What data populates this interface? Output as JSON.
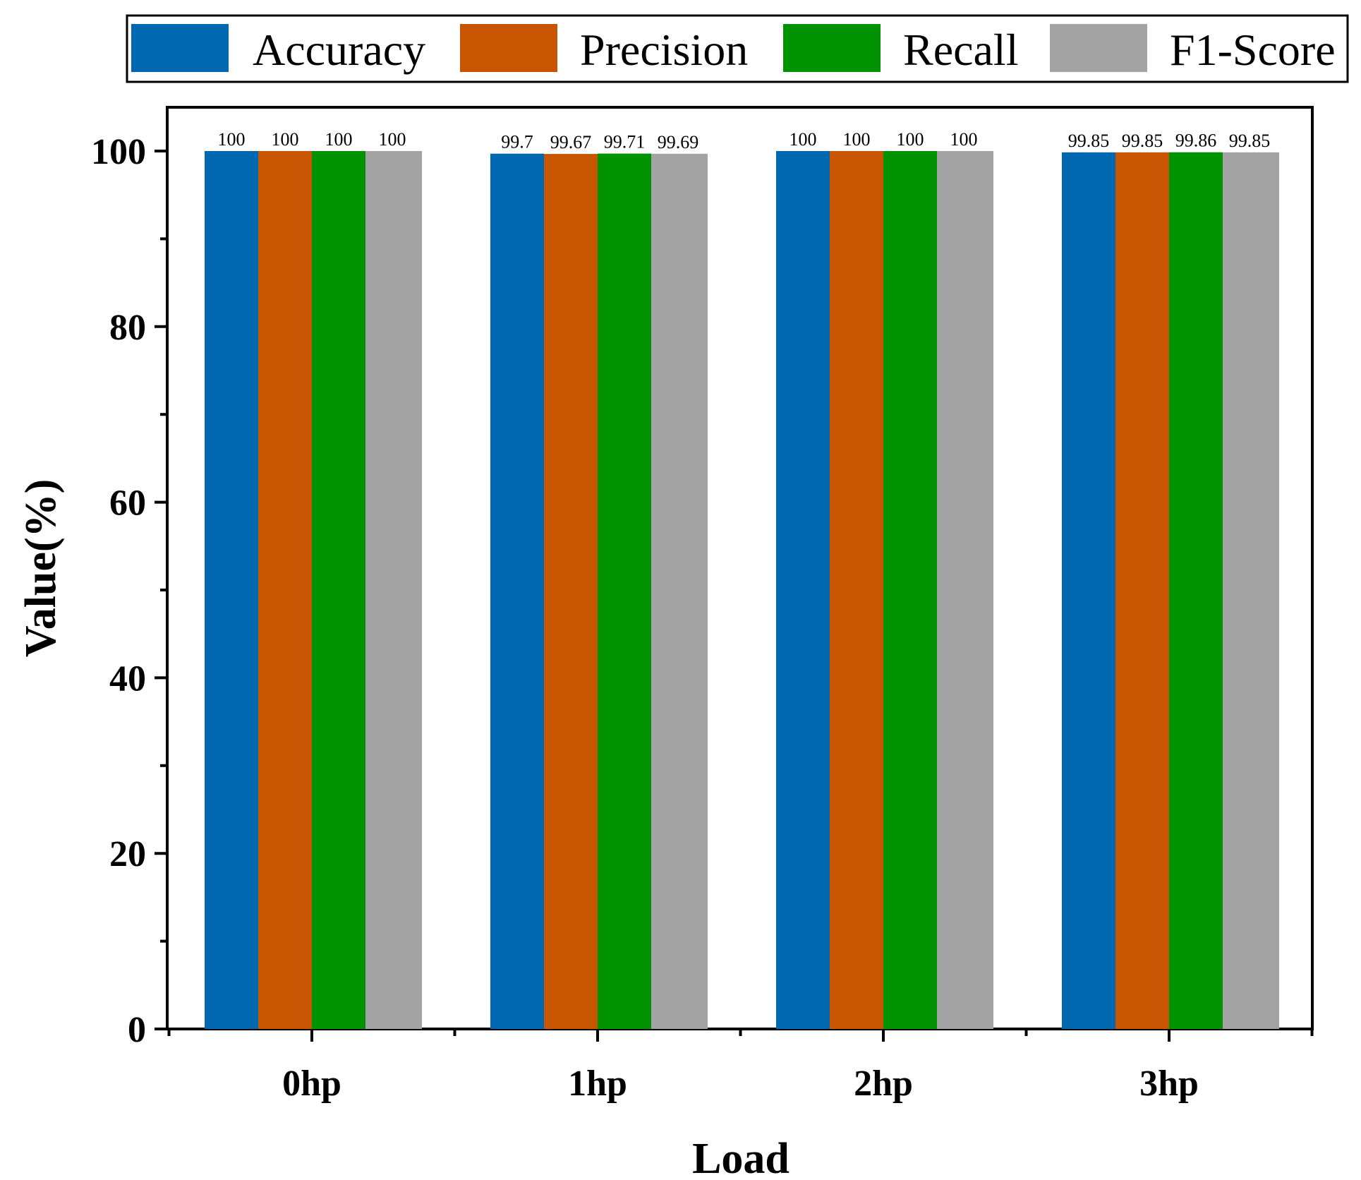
{
  "chart_data": {
    "type": "bar",
    "title": "",
    "xlabel": "Load",
    "ylabel": "Value(%)",
    "categories": [
      "0hp",
      "1hp",
      "2hp",
      "3hp"
    ],
    "ylim": [
      0,
      105
    ],
    "yticks": [
      0,
      20,
      40,
      60,
      80,
      100
    ],
    "grid": false,
    "legend_position": "top",
    "series": [
      {
        "name": "Accuracy",
        "color": "#0068b0",
        "values": [
          100,
          99.7,
          100,
          99.85
        ],
        "labels": [
          "100",
          "99.7",
          "100",
          "99.85"
        ]
      },
      {
        "name": "Precision",
        "color": "#c85502",
        "values": [
          100,
          99.67,
          100,
          99.85
        ],
        "labels": [
          "100",
          "99.67",
          "100",
          "99.85"
        ]
      },
      {
        "name": "Recall",
        "color": "#009200",
        "values": [
          100,
          99.71,
          100,
          99.86
        ],
        "labels": [
          "100",
          "99.71",
          "100",
          "99.86"
        ]
      },
      {
        "name": "F1-Score",
        "color": "#a3a3a3",
        "values": [
          100,
          99.69,
          100,
          99.85
        ],
        "labels": [
          "100",
          "99.69",
          "100",
          "99.85"
        ]
      }
    ]
  }
}
